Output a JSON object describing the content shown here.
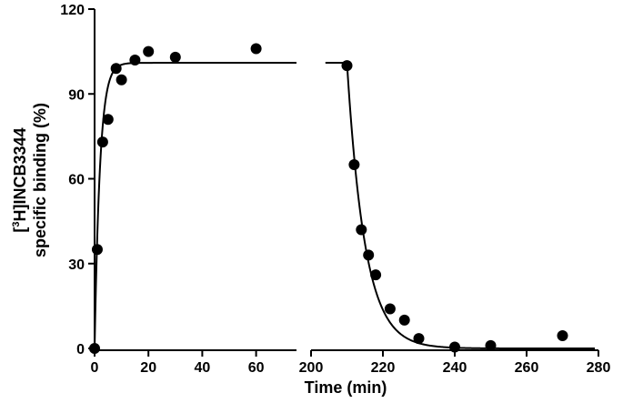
{
  "chart_data": {
    "type": "scatter",
    "title": "",
    "xlabel": "Time (min)",
    "ylabel_line1_prefix": "[",
    "ylabel_line1_sup": "3",
    "ylabel_line1_suffix": "H]INCB3344",
    "ylabel_line2": "specific binding (%)",
    "x_segments": [
      {
        "xlim": [
          0,
          75
        ],
        "xticks": [
          0,
          20,
          40,
          60
        ]
      },
      {
        "xlim": [
          200,
          280
        ],
        "xticks": [
          200,
          220,
          240,
          260,
          280
        ]
      }
    ],
    "ylim": [
      0,
      120
    ],
    "yticks": [
      0,
      30,
      60,
      90,
      120
    ],
    "x_tick_labels": [
      "0",
      "20",
      "40",
      "60",
      "200",
      "220",
      "240",
      "260",
      "280"
    ],
    "y_tick_labels": [
      "0",
      "30",
      "60",
      "90",
      "120"
    ],
    "grid": false,
    "series": [
      {
        "x": [
          0,
          1,
          3,
          5,
          8,
          10,
          15,
          20,
          30,
          60,
          210,
          212,
          214,
          216,
          218,
          222,
          226,
          230,
          240,
          250,
          270
        ],
        "y": [
          0,
          35,
          73,
          81,
          99,
          95,
          102,
          105,
          103,
          106,
          100,
          65,
          42,
          33,
          26,
          14,
          10,
          3.5,
          0.5,
          1,
          4.5
        ]
      }
    ],
    "fit": {
      "association": {
        "plateau": 101,
        "k_per_min": 0.5,
        "x_range": [
          0,
          75
        ]
      },
      "dissociation": {
        "start_y": 101,
        "t0_min": 210,
        "k_per_min": 0.2,
        "x_range": [
          204,
          279
        ]
      }
    }
  }
}
